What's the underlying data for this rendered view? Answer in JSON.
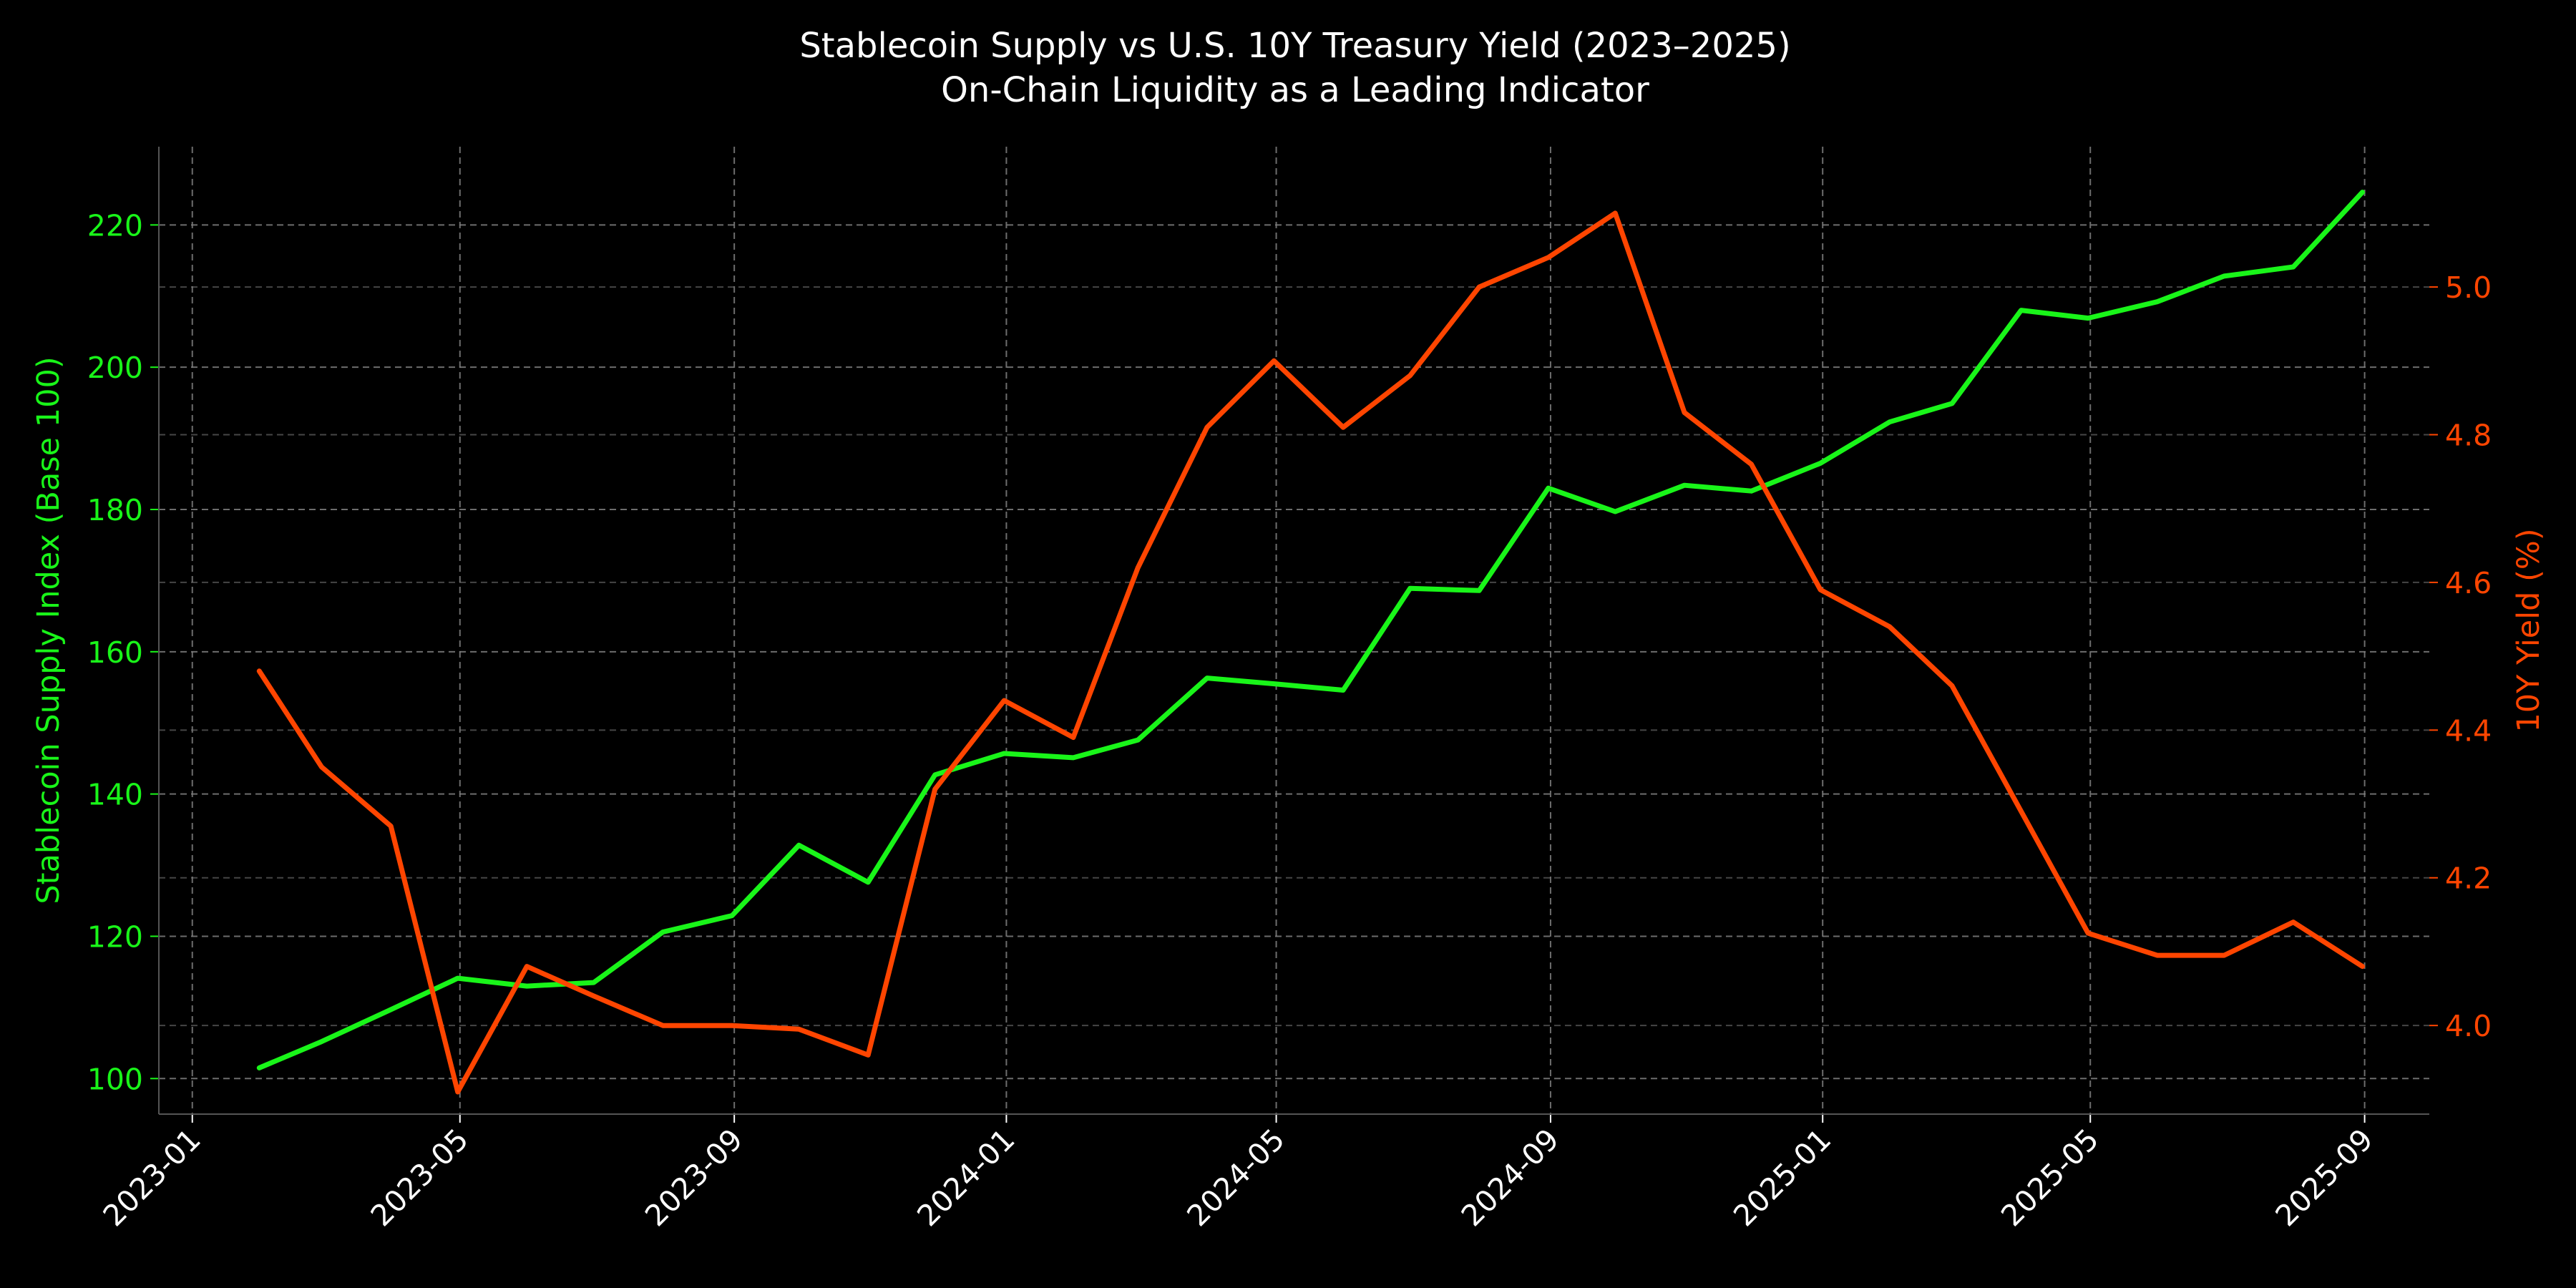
{
  "colors": {
    "background": "#000000",
    "supply": "#19f519",
    "yield": "#ff4500",
    "grid": "#808080",
    "text": "#ffffff",
    "spine": "#555555"
  },
  "chart_data": {
    "type": "line",
    "title": "Stablecoin Supply vs U.S. 10Y Treasury Yield (2023–2025)",
    "subtitle": "On-Chain Liquidity as a Leading Indicator",
    "ylabel_left": "Stablecoin Supply Index (Base 100)",
    "ylabel_right": "10Y Yield (%)",
    "grid": true,
    "grid_style": "dashed",
    "xlim": [
      "2022-12-17",
      "2025-09-30"
    ],
    "x_ticks": [
      "2023-01",
      "2023-05",
      "2023-09",
      "2024-01",
      "2024-05",
      "2024-09",
      "2025-01",
      "2025-05",
      "2025-09"
    ],
    "y_left_lim": [
      95,
      231
    ],
    "y_left_ticks": [
      100,
      120,
      140,
      160,
      180,
      200,
      220
    ],
    "y_right_lim": [
      3.88,
      5.19
    ],
    "y_right_ticks": [
      4.0,
      4.2,
      4.4,
      4.6,
      4.8,
      5.0
    ],
    "x": [
      "2023-01-31",
      "2023-02-28",
      "2023-03-31",
      "2023-04-30",
      "2023-05-31",
      "2023-06-30",
      "2023-07-31",
      "2023-08-31",
      "2023-09-30",
      "2023-10-31",
      "2023-11-30",
      "2023-12-31",
      "2024-01-31",
      "2024-02-29",
      "2024-03-31",
      "2024-04-30",
      "2024-05-31",
      "2024-06-30",
      "2024-07-31",
      "2024-08-31",
      "2024-09-30",
      "2024-10-31",
      "2024-11-30",
      "2024-12-31",
      "2025-01-31",
      "2025-02-28",
      "2025-03-31",
      "2025-04-30",
      "2025-05-31",
      "2025-06-30",
      "2025-07-31",
      "2025-08-31"
    ],
    "series": [
      {
        "name": "Stablecoin Supply Index (Base 100)",
        "axis": "left",
        "color": "#19f519",
        "values": [
          101.5,
          105.2,
          109.7,
          114.1,
          113.0,
          113.5,
          120.6,
          122.9,
          132.8,
          127.6,
          142.7,
          145.7,
          145.1,
          147.6,
          156.3,
          155.5,
          154.6,
          168.9,
          168.6,
          183.0,
          179.7,
          183.4,
          182.6,
          186.5,
          192.3,
          194.9,
          208.0,
          206.9,
          209.2,
          212.8,
          214.1,
          224.6
        ]
      },
      {
        "name": "10Y Yield (%)",
        "axis": "right",
        "color": "#ff4500",
        "values": [
          4.48,
          4.35,
          4.27,
          3.91,
          4.08,
          4.04,
          4.0,
          4.0,
          3.995,
          3.96,
          4.32,
          4.44,
          4.39,
          4.62,
          4.81,
          4.9,
          4.81,
          4.88,
          5.0,
          5.04,
          5.1,
          4.83,
          4.76,
          4.59,
          4.54,
          4.46,
          4.29,
          4.125,
          4.095,
          4.095,
          4.14,
          4.08
        ]
      }
    ]
  }
}
